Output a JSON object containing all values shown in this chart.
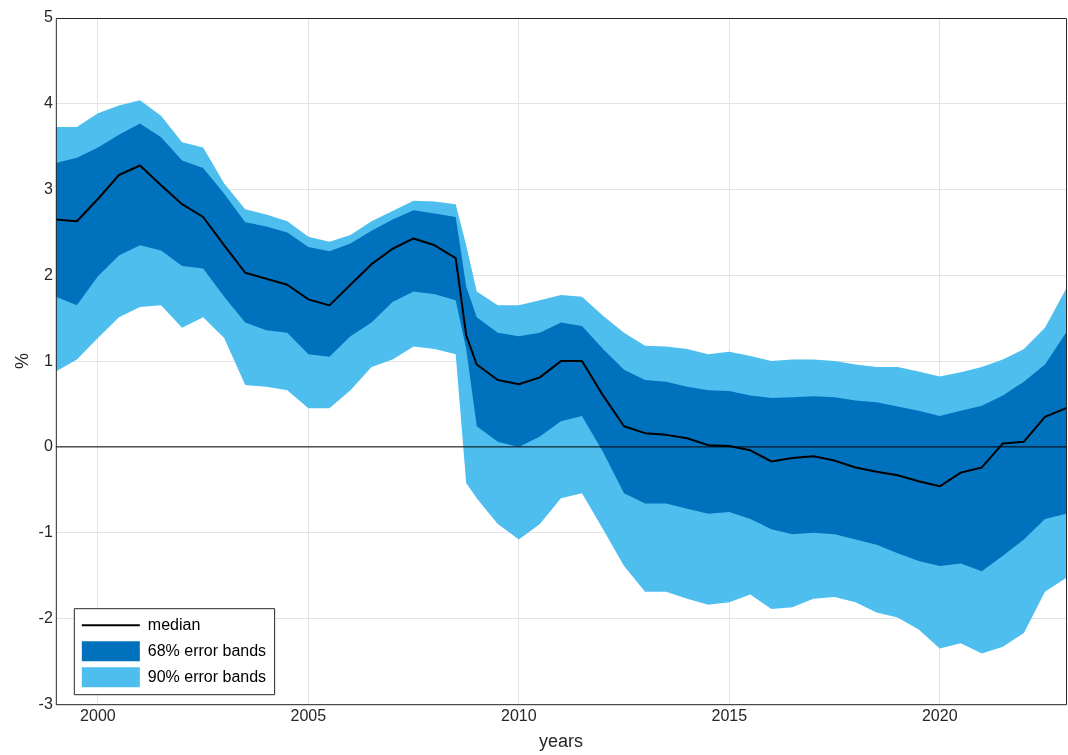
{
  "chart_data": {
    "type": "line",
    "xlabel": "years",
    "ylabel": "%",
    "x": [
      1999,
      1999.5,
      2000,
      2000.5,
      2001,
      2001.5,
      2002,
      2002.5,
      2003,
      2003.5,
      2004,
      2004.5,
      2005,
      2005.5,
      2006,
      2006.5,
      2007,
      2007.5,
      2008,
      2008.5,
      2008.75,
      2009,
      2009.5,
      2010,
      2010.5,
      2011,
      2011.5,
      2012,
      2012.5,
      2013,
      2013.5,
      2014,
      2014.5,
      2015,
      2015.5,
      2016,
      2016.5,
      2017,
      2017.5,
      2018,
      2018.5,
      2019,
      2019.5,
      2020,
      2020.5,
      2021,
      2021.5,
      2022,
      2022.5,
      2023
    ],
    "series": [
      {
        "name": "median",
        "color": "#000000",
        "values": [
          2.65,
          2.63,
          2.89,
          3.17,
          3.28,
          3.05,
          2.83,
          2.68,
          2.35,
          2.03,
          1.96,
          1.89,
          1.72,
          1.65,
          1.89,
          2.13,
          2.31,
          2.43,
          2.35,
          2.2,
          1.3,
          0.96,
          0.78,
          0.73,
          0.81,
          1.0,
          1.0,
          0.6,
          0.24,
          0.16,
          0.14,
          0.1,
          0.02,
          0.01,
          -0.04,
          -0.17,
          -0.13,
          -0.11,
          -0.16,
          -0.24,
          -0.29,
          -0.33,
          -0.4,
          -0.46,
          -0.3,
          -0.24,
          0.04,
          0.06,
          0.35,
          0.45
        ]
      },
      {
        "name": "68% error bands",
        "type": "area",
        "color": "#0072bd",
        "values": [
          null,
          null,
          null,
          null,
          null,
          null,
          null,
          null,
          null,
          null,
          null,
          null,
          null,
          null,
          null,
          null,
          null,
          null,
          null,
          null,
          null,
          null,
          null,
          null,
          null,
          null,
          null,
          null,
          null,
          null,
          null,
          null,
          null,
          null,
          null,
          null,
          null,
          null,
          null,
          null,
          null,
          null,
          null,
          null,
          null,
          null,
          null,
          null,
          null,
          null
        ],
        "lower": [
          1.75,
          1.65,
          1.99,
          2.23,
          2.35,
          2.29,
          2.11,
          2.08,
          1.75,
          1.45,
          1.36,
          1.33,
          1.08,
          1.05,
          1.29,
          1.45,
          1.69,
          1.81,
          1.78,
          1.71,
          1.14,
          0.24,
          0.06,
          0.0,
          0.12,
          0.3,
          0.36,
          -0.06,
          -0.54,
          -0.66,
          -0.66,
          -0.72,
          -0.78,
          -0.76,
          -0.84,
          -0.96,
          -1.02,
          -1.0,
          -1.02,
          -1.08,
          -1.14,
          -1.24,
          -1.33,
          -1.39,
          -1.36,
          -1.45,
          -1.27,
          -1.08,
          -0.84,
          -0.78
        ],
        "upper": [
          3.31,
          3.37,
          3.49,
          3.64,
          3.77,
          3.61,
          3.34,
          3.25,
          2.95,
          2.62,
          2.57,
          2.5,
          2.33,
          2.28,
          2.37,
          2.52,
          2.65,
          2.76,
          2.72,
          2.68,
          1.87,
          1.51,
          1.33,
          1.29,
          1.33,
          1.45,
          1.41,
          1.14,
          0.9,
          0.78,
          0.76,
          0.7,
          0.66,
          0.65,
          0.6,
          0.57,
          0.58,
          0.59,
          0.58,
          0.54,
          0.52,
          0.47,
          0.42,
          0.36,
          0.42,
          0.48,
          0.6,
          0.76,
          0.96,
          1.33
        ]
      },
      {
        "name": "90% error bands",
        "type": "area",
        "color": "#4dbeee",
        "values": [
          null,
          null,
          null,
          null,
          null,
          null,
          null,
          null,
          null,
          null,
          null,
          null,
          null,
          null,
          null,
          null,
          null,
          null,
          null,
          null,
          null,
          null,
          null,
          null,
          null,
          null,
          null,
          null,
          null,
          null,
          null,
          null,
          null,
          null,
          null,
          null,
          null,
          null,
          null,
          null,
          null,
          null,
          null,
          null,
          null,
          null,
          null,
          null,
          null,
          null
        ],
        "lower": [
          0.88,
          1.02,
          1.27,
          1.51,
          1.63,
          1.65,
          1.39,
          1.51,
          1.27,
          0.72,
          0.7,
          0.66,
          0.45,
          0.45,
          0.66,
          0.93,
          1.02,
          1.17,
          1.14,
          1.08,
          -0.42,
          -0.6,
          -0.9,
          -1.08,
          -0.9,
          -0.6,
          -0.54,
          -0.96,
          -1.39,
          -1.69,
          -1.69,
          -1.77,
          -1.84,
          -1.81,
          -1.72,
          -1.89,
          -1.87,
          -1.77,
          -1.75,
          -1.81,
          -1.93,
          -1.99,
          -2.13,
          -2.35,
          -2.29,
          -2.41,
          -2.33,
          -2.17,
          -1.69,
          -1.53
        ],
        "upper": [
          3.73,
          3.73,
          3.89,
          3.98,
          4.04,
          3.86,
          3.55,
          3.49,
          3.07,
          2.77,
          2.71,
          2.63,
          2.45,
          2.39,
          2.47,
          2.63,
          2.75,
          2.87,
          2.86,
          2.83,
          2.35,
          1.81,
          1.65,
          1.65,
          1.71,
          1.77,
          1.75,
          1.53,
          1.33,
          1.18,
          1.17,
          1.14,
          1.08,
          1.11,
          1.06,
          1.0,
          1.02,
          1.02,
          1.0,
          0.96,
          0.93,
          0.93,
          0.88,
          0.82,
          0.87,
          0.93,
          1.02,
          1.14,
          1.39,
          1.84
        ]
      }
    ],
    "xlim": [
      1999,
      2023
    ],
    "xticks": [
      2000,
      2005,
      2010,
      2015,
      2020
    ],
    "ylim": [
      -3,
      5
    ],
    "yticks": [
      -3,
      -2,
      -1,
      0,
      1,
      2,
      3,
      4,
      5
    ],
    "ref_lines": [
      {
        "axis": "y",
        "value": 0,
        "color": "#000000"
      }
    ],
    "grid": true,
    "legend": "bottom left",
    "line_style": "solid",
    "marker": "none"
  }
}
